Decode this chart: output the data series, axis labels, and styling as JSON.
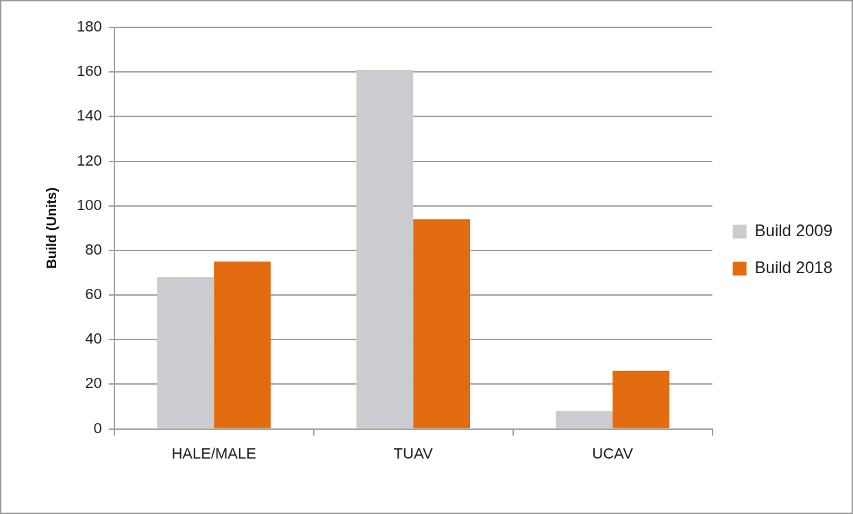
{
  "chart_data": {
    "type": "bar",
    "ylabel": "Build (Units)",
    "categories": [
      "HALE/MALE",
      "TUAV",
      "UCAV"
    ],
    "series": [
      {
        "name": "Build 2009",
        "color": "#cbcccf",
        "values": [
          68,
          161,
          8
        ]
      },
      {
        "name": "Build 2018",
        "color": "#e36c10",
        "values": [
          75,
          94,
          26
        ]
      }
    ],
    "ylim": [
      0,
      180
    ],
    "yticks": [
      0,
      20,
      40,
      60,
      80,
      100,
      120,
      140,
      160,
      180
    ],
    "grid": "y",
    "legend": "right"
  }
}
